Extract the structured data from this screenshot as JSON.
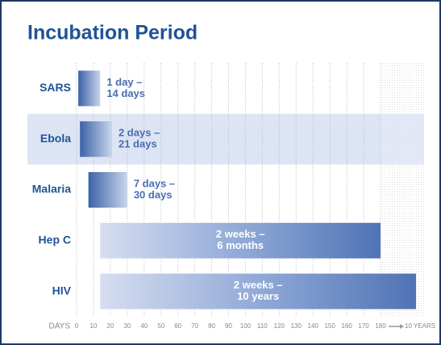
{
  "chart_data": {
    "type": "range-bar",
    "title": "Incubation Period",
    "categories": [
      "SARS",
      "Ebola",
      "Malaria",
      "Hep C",
      "HIV"
    ],
    "starts": [
      1,
      2,
      7,
      14,
      14
    ],
    "ends": [
      14,
      21,
      30,
      180,
      3650
    ],
    "value_labels": [
      [
        "1 day –",
        "14 days"
      ],
      [
        "2 days –",
        "21 days"
      ],
      [
        "7 days –",
        "30 days"
      ],
      [
        "2 weeks –",
        "6 months"
      ],
      [
        "2 weeks –",
        "10 years"
      ]
    ],
    "color": "#4a6db0",
    "highlight_category": "Ebola",
    "xlabel": "DAYS",
    "xlim": [
      0,
      180
    ],
    "xticks": [
      0,
      10,
      20,
      30,
      40,
      50,
      60,
      70,
      80,
      90,
      100,
      110,
      120,
      130,
      140,
      150,
      160,
      170,
      180
    ],
    "x_break": {
      "value": 3650,
      "label": "10 YEARS"
    },
    "grid": true
  }
}
